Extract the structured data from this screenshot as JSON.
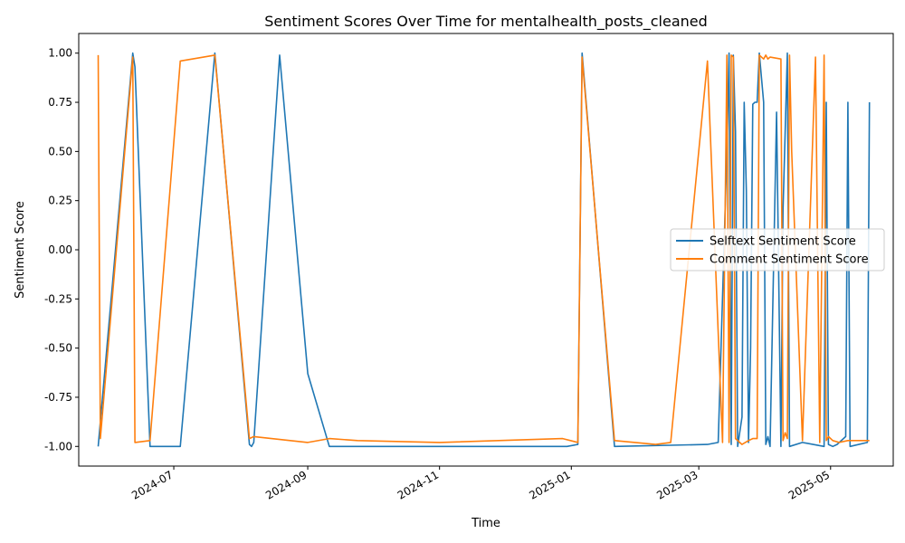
{
  "chart_data": {
    "type": "line",
    "title": "Sentiment Scores Over Time for mentalhealth_posts_cleaned",
    "xlabel": "Time",
    "ylabel": "Sentiment Score",
    "xlim": [
      "2024-05-18",
      "2025-05-30"
    ],
    "ylim": [
      -1.1,
      1.1
    ],
    "x_ticks": [
      "2024-07-01",
      "2024-09-01",
      "2024-11-01",
      "2025-01-01",
      "2025-03-01",
      "2025-05-01"
    ],
    "y_ticks": [
      -1.0,
      -0.75,
      -0.5,
      -0.25,
      0.0,
      0.25,
      0.5,
      0.75,
      1.0
    ],
    "grid": false,
    "legend_position": "center-right",
    "series": [
      {
        "name": "Selftext Sentiment Score",
        "color": "#1f77b4",
        "points": [
          [
            "2024-05-27",
            -1.0
          ],
          [
            "2024-06-12",
            1.0
          ],
          [
            "2024-06-13",
            0.93
          ],
          [
            "2024-06-20",
            -1.0
          ],
          [
            "2024-07-04",
            -1.0
          ],
          [
            "2024-07-20",
            1.0
          ],
          [
            "2024-08-05",
            -0.99
          ],
          [
            "2024-08-06",
            -1.0
          ],
          [
            "2024-08-07",
            -0.98
          ],
          [
            "2024-08-19",
            0.99
          ],
          [
            "2024-09-01",
            -0.63
          ],
          [
            "2024-09-11",
            -1.0
          ],
          [
            "2024-12-30",
            -1.0
          ],
          [
            "2025-01-04",
            -0.99
          ],
          [
            "2025-01-06",
            1.0
          ],
          [
            "2025-01-21",
            -1.0
          ],
          [
            "2025-03-05",
            -0.99
          ],
          [
            "2025-03-10",
            -0.98
          ],
          [
            "2025-03-14",
            0.5
          ],
          [
            "2025-03-15",
            1.0
          ],
          [
            "2025-03-16",
            -0.99
          ],
          [
            "2025-03-17",
            0.99
          ],
          [
            "2025-03-18",
            0.6
          ],
          [
            "2025-03-19",
            -1.0
          ],
          [
            "2025-03-21",
            -0.85
          ],
          [
            "2025-03-22",
            0.75
          ],
          [
            "2025-03-23",
            0.3
          ],
          [
            "2025-03-24",
            -0.98
          ],
          [
            "2025-03-25",
            -0.5
          ],
          [
            "2025-03-26",
            0.74
          ],
          [
            "2025-03-27",
            0.75
          ],
          [
            "2025-03-28",
            0.75
          ],
          [
            "2025-03-29",
            1.0
          ],
          [
            "2025-03-31",
            0.75
          ],
          [
            "2025-04-01",
            -0.99
          ],
          [
            "2025-04-02",
            -0.95
          ],
          [
            "2025-04-03",
            -1.0
          ],
          [
            "2025-04-06",
            0.7
          ],
          [
            "2025-04-08",
            -1.0
          ],
          [
            "2025-04-09",
            0.2
          ],
          [
            "2025-04-11",
            1.0
          ],
          [
            "2025-04-12",
            -1.0
          ],
          [
            "2025-04-18",
            -0.98
          ],
          [
            "2025-04-28",
            -1.0
          ],
          [
            "2025-04-29",
            0.75
          ],
          [
            "2025-04-30",
            -0.99
          ],
          [
            "2025-05-02",
            -1.0
          ],
          [
            "2025-05-04",
            -0.99
          ],
          [
            "2025-05-08",
            -0.95
          ],
          [
            "2025-05-09",
            0.75
          ],
          [
            "2025-05-10",
            -1.0
          ],
          [
            "2025-05-18",
            -0.98
          ],
          [
            "2025-05-19",
            0.75
          ]
        ]
      },
      {
        "name": "Comment Sentiment Score",
        "color": "#ff7f0e",
        "points": [
          [
            "2024-05-27",
            0.99
          ],
          [
            "2024-05-28",
            -0.96
          ],
          [
            "2024-06-12",
            0.98
          ],
          [
            "2024-06-13",
            -0.98
          ],
          [
            "2024-06-20",
            -0.97
          ],
          [
            "2024-07-04",
            0.96
          ],
          [
            "2024-07-20",
            0.99
          ],
          [
            "2024-08-05",
            -0.96
          ],
          [
            "2024-08-07",
            -0.95
          ],
          [
            "2024-09-01",
            -0.98
          ],
          [
            "2024-09-11",
            -0.96
          ],
          [
            "2024-09-24",
            -0.97
          ],
          [
            "2024-11-01",
            -0.98
          ],
          [
            "2024-12-28",
            -0.96
          ],
          [
            "2025-01-04",
            -0.98
          ],
          [
            "2025-01-06",
            0.98
          ],
          [
            "2025-01-21",
            -0.97
          ],
          [
            "2025-02-09",
            -0.99
          ],
          [
            "2025-02-16",
            -0.98
          ],
          [
            "2025-03-05",
            0.96
          ],
          [
            "2025-03-12",
            -0.98
          ],
          [
            "2025-03-14",
            0.99
          ],
          [
            "2025-03-15",
            -0.98
          ],
          [
            "2025-03-16",
            0.99
          ],
          [
            "2025-03-17",
            0.98
          ],
          [
            "2025-03-18",
            -0.96
          ],
          [
            "2025-03-21",
            -0.99
          ],
          [
            "2025-03-24",
            -0.97
          ],
          [
            "2025-03-26",
            -0.96
          ],
          [
            "2025-03-28",
            -0.96
          ],
          [
            "2025-03-29",
            0.99
          ],
          [
            "2025-03-31",
            0.97
          ],
          [
            "2025-04-01",
            0.99
          ],
          [
            "2025-04-02",
            0.97
          ],
          [
            "2025-04-03",
            0.98
          ],
          [
            "2025-04-08",
            0.97
          ],
          [
            "2025-04-09",
            -0.97
          ],
          [
            "2025-04-10",
            -0.93
          ],
          [
            "2025-04-11",
            -0.96
          ],
          [
            "2025-04-12",
            0.99
          ],
          [
            "2025-04-13",
            0.5
          ],
          [
            "2025-04-18",
            -0.97
          ],
          [
            "2025-04-24",
            0.98
          ],
          [
            "2025-04-26",
            -0.98
          ],
          [
            "2025-04-28",
            0.99
          ],
          [
            "2025-04-29",
            -0.97
          ],
          [
            "2025-04-30",
            -0.95
          ],
          [
            "2025-05-02",
            -0.97
          ],
          [
            "2025-05-05",
            -0.98
          ],
          [
            "2025-05-09",
            -0.97
          ],
          [
            "2025-05-19",
            -0.97
          ]
        ]
      }
    ]
  }
}
